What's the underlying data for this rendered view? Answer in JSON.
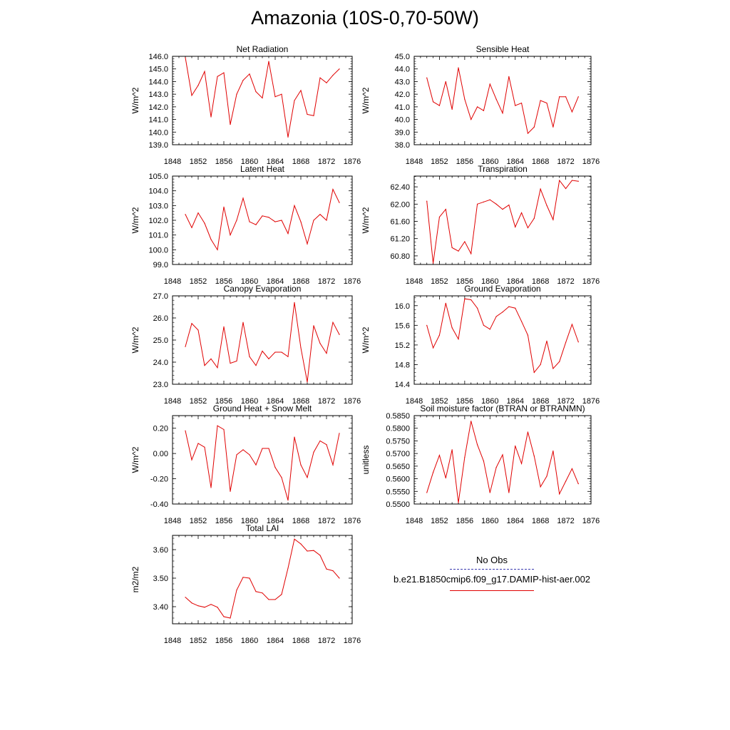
{
  "figure_title": "Amazonia (10S-0,70-50W)",
  "legend": {
    "obs_label": "No Obs",
    "model_label": "b.e21.B1850cmip6.f09_g17.DAMIP-hist-aer.002",
    "obs_color": "#3a3ab0",
    "model_color": "#e00000"
  },
  "chart_data": [
    {
      "type": "line",
      "title": "Net Radiation",
      "ylabel": "W/m^2",
      "xlim": [
        1848,
        1876
      ],
      "x_ticks": [
        "1848",
        "1852",
        "1856",
        "1860",
        "1864",
        "1868",
        "1872",
        "1876"
      ],
      "ylim": [
        139.0,
        146.0
      ],
      "y_ticks": [
        "139.0",
        "140.0",
        "141.0",
        "142.0",
        "143.0",
        "144.0",
        "145.0",
        "146.0"
      ],
      "series": [
        {
          "x": [
            1850,
            1851,
            1852,
            1853,
            1854,
            1855,
            1856,
            1857,
            1858,
            1859,
            1860,
            1861,
            1862,
            1863,
            1864,
            1865,
            1866,
            1867,
            1868,
            1869,
            1870,
            1871,
            1872,
            1873,
            1874
          ],
          "values": [
            145.9,
            142.9,
            143.7,
            144.8,
            141.2,
            144.4,
            144.7,
            140.6,
            143.0,
            144.1,
            144.6,
            143.2,
            142.7,
            145.6,
            142.8,
            143.0,
            139.6,
            142.5,
            143.3,
            141.4,
            141.3,
            144.3,
            143.9,
            144.5,
            145.0
          ]
        }
      ]
    },
    {
      "type": "line",
      "title": "Sensible Heat",
      "ylabel": "W/m^2",
      "xlim": [
        1848,
        1876
      ],
      "x_ticks": [
        "1848",
        "1852",
        "1856",
        "1860",
        "1864",
        "1868",
        "1872",
        "1876"
      ],
      "ylim": [
        38.0,
        45.0
      ],
      "y_ticks": [
        "38.0",
        "39.0",
        "40.0",
        "41.0",
        "42.0",
        "43.0",
        "44.0",
        "45.0"
      ],
      "series": [
        {
          "x": [
            1850,
            1851,
            1852,
            1853,
            1854,
            1855,
            1856,
            1857,
            1858,
            1859,
            1860,
            1861,
            1862,
            1863,
            1864,
            1865,
            1866,
            1867,
            1868,
            1869,
            1870,
            1871,
            1872,
            1873,
            1874
          ],
          "values": [
            43.3,
            41.4,
            41.1,
            43.0,
            40.8,
            44.1,
            41.6,
            40.0,
            41.0,
            40.7,
            42.8,
            41.6,
            40.5,
            43.4,
            41.1,
            41.3,
            38.9,
            39.4,
            41.5,
            41.3,
            39.4,
            41.8,
            41.8,
            40.6,
            41.8
          ]
        }
      ]
    },
    {
      "type": "line",
      "title": "Latent Heat",
      "ylabel": "W/m^2",
      "xlim": [
        1848,
        1876
      ],
      "x_ticks": [
        "1848",
        "1852",
        "1856",
        "1860",
        "1864",
        "1868",
        "1872",
        "1876"
      ],
      "ylim": [
        99.0,
        105.0
      ],
      "y_ticks": [
        "99.0",
        "100.0",
        "101.0",
        "102.0",
        "103.0",
        "104.0",
        "105.0"
      ],
      "series": [
        {
          "x": [
            1850,
            1851,
            1852,
            1853,
            1854,
            1855,
            1856,
            1857,
            1858,
            1859,
            1860,
            1861,
            1862,
            1863,
            1864,
            1865,
            1866,
            1867,
            1868,
            1869,
            1870,
            1871,
            1872,
            1873,
            1874
          ],
          "values": [
            102.4,
            101.5,
            102.5,
            101.8,
            100.7,
            100.0,
            102.9,
            101.0,
            102.0,
            103.5,
            101.9,
            101.7,
            102.3,
            102.2,
            101.9,
            102.0,
            101.1,
            103.0,
            101.9,
            100.4,
            102.0,
            102.4,
            102.0,
            104.1,
            103.2
          ]
        }
      ]
    },
    {
      "type": "line",
      "title": "Transpiration",
      "ylabel": "W/m^2",
      "xlim": [
        1848,
        1876
      ],
      "x_ticks": [
        "1848",
        "1852",
        "1856",
        "1860",
        "1864",
        "1868",
        "1872",
        "1876"
      ],
      "ylim": [
        60.6,
        62.65
      ],
      "y_ticks": [
        "60.80",
        "61.20",
        "61.60",
        "62.00",
        "62.40"
      ],
      "series": [
        {
          "x": [
            1850,
            1851,
            1852,
            1853,
            1854,
            1855,
            1856,
            1857,
            1858,
            1859,
            1860,
            1861,
            1862,
            1863,
            1864,
            1865,
            1866,
            1867,
            1868,
            1869,
            1870,
            1871,
            1872,
            1873,
            1874
          ],
          "values": [
            62.07,
            60.63,
            61.7,
            61.88,
            60.99,
            60.91,
            61.13,
            60.85,
            62.0,
            62.05,
            62.1,
            62.0,
            61.88,
            61.98,
            61.47,
            61.8,
            61.45,
            61.67,
            62.35,
            61.97,
            61.64,
            62.55,
            62.36,
            62.55,
            62.53
          ]
        }
      ]
    },
    {
      "type": "line",
      "title": "Canopy Evaporation",
      "ylabel": "W/m^2",
      "xlim": [
        1848,
        1876
      ],
      "x_ticks": [
        "1848",
        "1852",
        "1856",
        "1860",
        "1864",
        "1868",
        "1872",
        "1876"
      ],
      "ylim": [
        23.0,
        27.0
      ],
      "y_ticks": [
        "23.0",
        "24.0",
        "25.0",
        "26.0",
        "27.0"
      ],
      "series": [
        {
          "x": [
            1850,
            1851,
            1852,
            1853,
            1854,
            1855,
            1856,
            1857,
            1858,
            1859,
            1860,
            1861,
            1862,
            1863,
            1864,
            1865,
            1866,
            1867,
            1868,
            1869,
            1870,
            1871,
            1872,
            1873,
            1874
          ],
          "values": [
            24.7,
            25.75,
            25.45,
            23.85,
            24.15,
            23.75,
            25.6,
            23.95,
            24.05,
            25.8,
            24.25,
            23.85,
            24.5,
            24.15,
            24.45,
            24.45,
            24.25,
            26.7,
            24.65,
            23.1,
            25.65,
            24.85,
            24.4,
            25.8,
            25.25
          ]
        }
      ]
    },
    {
      "type": "line",
      "title": "Ground Evaporation",
      "ylabel": "W/m^2",
      "xlim": [
        1848,
        1876
      ],
      "x_ticks": [
        "1848",
        "1852",
        "1856",
        "1860",
        "1864",
        "1868",
        "1872",
        "1876"
      ],
      "ylim": [
        14.4,
        16.2
      ],
      "y_ticks": [
        "14.4",
        "14.8",
        "15.2",
        "15.6",
        "16.0"
      ],
      "series": [
        {
          "x": [
            1850,
            1851,
            1852,
            1853,
            1854,
            1855,
            1856,
            1857,
            1858,
            1859,
            1860,
            1861,
            1862,
            1863,
            1864,
            1865,
            1866,
            1867,
            1868,
            1869,
            1870,
            1871,
            1872,
            1873,
            1874
          ],
          "values": [
            15.6,
            15.14,
            15.4,
            16.05,
            15.55,
            15.32,
            16.14,
            16.12,
            15.95,
            15.6,
            15.52,
            15.78,
            15.87,
            15.98,
            15.95,
            15.68,
            15.4,
            14.64,
            14.8,
            15.28,
            14.72,
            14.86,
            15.25,
            15.62,
            15.26
          ]
        }
      ]
    },
    {
      "type": "line",
      "title": "Ground Heat + Snow Melt",
      "ylabel": "W/m^2",
      "xlim": [
        1848,
        1876
      ],
      "x_ticks": [
        "1848",
        "1852",
        "1856",
        "1860",
        "1864",
        "1868",
        "1872",
        "1876"
      ],
      "ylim": [
        -0.4,
        0.3
      ],
      "y_ticks": [
        "-0.40",
        "-0.20",
        "0.00",
        "0.20"
      ],
      "series": [
        {
          "x": [
            1850,
            1851,
            1852,
            1853,
            1854,
            1855,
            1856,
            1857,
            1858,
            1859,
            1860,
            1861,
            1862,
            1863,
            1864,
            1865,
            1866,
            1867,
            1868,
            1869,
            1870,
            1871,
            1872,
            1873,
            1874
          ],
          "values": [
            0.18,
            -0.05,
            0.08,
            0.05,
            -0.27,
            0.22,
            0.19,
            -0.3,
            -0.01,
            0.03,
            -0.01,
            -0.09,
            0.04,
            0.04,
            -0.11,
            -0.19,
            -0.37,
            0.13,
            -0.09,
            -0.19,
            0.01,
            0.1,
            0.07,
            -0.09,
            0.16
          ]
        }
      ]
    },
    {
      "type": "line",
      "title": "Soil moisture factor (BTRAN or BTRANMN)",
      "ylabel": "unitless",
      "xlim": [
        1848,
        1876
      ],
      "x_ticks": [
        "1848",
        "1852",
        "1856",
        "1860",
        "1864",
        "1868",
        "1872",
        "1876"
      ],
      "ylim": [
        0.55,
        0.585
      ],
      "y_ticks": [
        "0.5500",
        "0.5550",
        "0.5600",
        "0.5650",
        "0.5700",
        "0.5750",
        "0.5800",
        "0.5850"
      ],
      "series": [
        {
          "x": [
            1850,
            1851,
            1852,
            1853,
            1854,
            1855,
            1856,
            1857,
            1858,
            1859,
            1860,
            1861,
            1862,
            1863,
            1864,
            1865,
            1866,
            1867,
            1868,
            1869,
            1870,
            1871,
            1872,
            1873,
            1874
          ],
          "values": [
            0.5545,
            0.5625,
            0.5693,
            0.5603,
            0.5715,
            0.5505,
            0.5685,
            0.5828,
            0.5735,
            0.567,
            0.5545,
            0.5645,
            0.5695,
            0.5545,
            0.573,
            0.566,
            0.5785,
            0.569,
            0.5568,
            0.561,
            0.571,
            0.554,
            0.559,
            0.564,
            0.558
          ]
        }
      ]
    },
    {
      "type": "line",
      "title": "Total LAI",
      "ylabel": "m2/m2",
      "xlim": [
        1848,
        1876
      ],
      "x_ticks": [
        "1848",
        "1852",
        "1856",
        "1860",
        "1864",
        "1868",
        "1872",
        "1876"
      ],
      "ylim": [
        3.34,
        3.65
      ],
      "y_ticks": [
        "3.40",
        "3.50",
        "3.60"
      ],
      "series": [
        {
          "x": [
            1850,
            1851,
            1852,
            1853,
            1854,
            1855,
            1856,
            1857,
            1858,
            1859,
            1860,
            1861,
            1862,
            1863,
            1864,
            1865,
            1866,
            1867,
            1868,
            1869,
            1870,
            1871,
            1872,
            1873,
            1874
          ],
          "values": [
            3.433,
            3.413,
            3.403,
            3.398,
            3.408,
            3.398,
            3.365,
            3.36,
            3.458,
            3.503,
            3.5,
            3.453,
            3.448,
            3.425,
            3.425,
            3.443,
            3.535,
            3.637,
            3.62,
            3.595,
            3.597,
            3.58,
            3.532,
            3.526,
            3.5
          ]
        }
      ]
    }
  ]
}
